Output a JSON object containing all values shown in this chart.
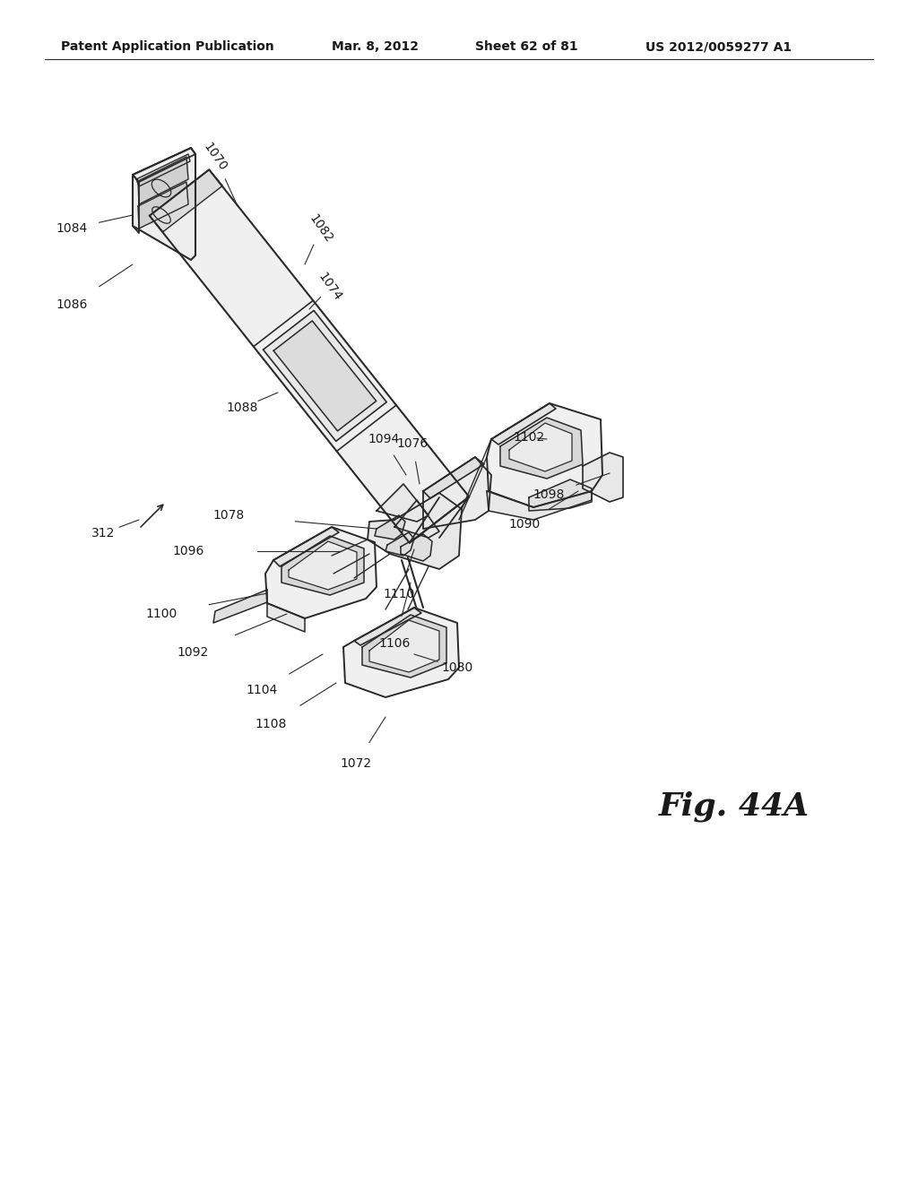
{
  "title": "Patent Application Publication",
  "date": "Mar. 8, 2012",
  "sheet": "Sheet 62 of 81",
  "patent_num": "US 2012/0059277 A1",
  "fig_label": "Fig. 44A",
  "background": "#ffffff",
  "line_color": "#2a2a2a",
  "text_color": "#1a1a1a",
  "header_fontsize": 10,
  "label_fontsize": 10,
  "fig_fontsize": 26
}
